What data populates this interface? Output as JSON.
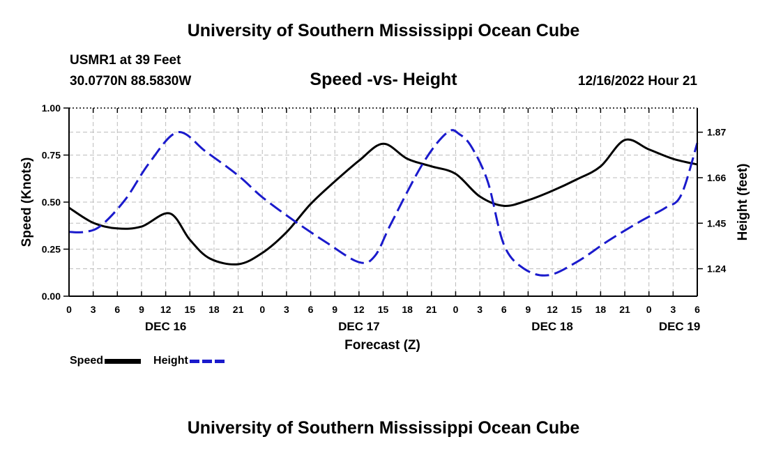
{
  "header": {
    "title": "University of Southern Mississippi Ocean Cube",
    "station": "USMR1 at 39 Feet",
    "coords": "30.0770N  88.5830W",
    "subtitle": "Speed -vs- Height",
    "datetime": "12/16/2022 Hour 21"
  },
  "footer": {
    "title": "University of Southern Mississippi Ocean Cube"
  },
  "legend": {
    "speed": "Speed",
    "height": "Height"
  },
  "colors": {
    "speed": "#000000",
    "height": "#1a1acc",
    "grid": "#bbbbbb"
  },
  "chart_data": {
    "type": "line",
    "xlabel": "Forecast (Z)",
    "ylabel": "Speed (Knots)",
    "y2label": "Height (feet)",
    "x_range_hours": [
      0,
      78
    ],
    "ylim": [
      0,
      1.0
    ],
    "y2lim": [
      1.1132,
      1.9815
    ],
    "y_ticks": [
      0.0,
      0.25,
      0.5,
      0.75,
      1.0
    ],
    "y_tick_labels": [
      "0.00",
      "0.25",
      "0.50",
      "0.75",
      "1.00"
    ],
    "y2_ticks": [
      1.24,
      1.45,
      1.66,
      1.87
    ],
    "y2_tick_labels": [
      "1.24",
      "1.45",
      "1.66",
      "1.87"
    ],
    "x_ticks": [
      0,
      3,
      6,
      9,
      12,
      15,
      18,
      21,
      24,
      27,
      30,
      33,
      36,
      39,
      42,
      45,
      48,
      51,
      54,
      57,
      60,
      63,
      66,
      69,
      72,
      75,
      78
    ],
    "x_tick_labels": [
      "0",
      "3",
      "6",
      "9",
      "12",
      "15",
      "18",
      "21",
      "0",
      "3",
      "6",
      "9",
      "12",
      "15",
      "18",
      "21",
      "0",
      "3",
      "6",
      "9",
      "12",
      "15",
      "18",
      "21",
      "0",
      "3",
      "6"
    ],
    "day_labels": [
      {
        "label": "DEC 16",
        "hour": 12
      },
      {
        "label": "DEC 17",
        "hour": 36
      },
      {
        "label": "DEC 18",
        "hour": 60
      },
      {
        "label": "DEC 19",
        "hour": 75.8
      }
    ],
    "grid": true,
    "series": [
      {
        "name": "Speed",
        "axis": "left",
        "style": "solid",
        "x": [
          0,
          3,
          6,
          9,
          12.5,
          15,
          17.5,
          21,
          24,
          27,
          30,
          33,
          36,
          39,
          42,
          45,
          48,
          51,
          54,
          57,
          60,
          63,
          66,
          69,
          72,
          75,
          78
        ],
        "values": [
          0.47,
          0.39,
          0.36,
          0.37,
          0.44,
          0.3,
          0.2,
          0.17,
          0.23,
          0.34,
          0.49,
          0.61,
          0.72,
          0.81,
          0.73,
          0.69,
          0.65,
          0.53,
          0.48,
          0.51,
          0.56,
          0.62,
          0.69,
          0.83,
          0.78,
          0.73,
          0.7
        ]
      },
      {
        "name": "Height",
        "axis": "right",
        "style": "dashed",
        "x": [
          0,
          2,
          4,
          7,
          10,
          13.5,
          17,
          21,
          24,
          28,
          32,
          36,
          38,
          40,
          44,
          47,
          48.5,
          50,
          52,
          54,
          56.5,
          59.5,
          63,
          67,
          71,
          74,
          76,
          78
        ],
        "values": [
          1.41,
          1.41,
          1.44,
          1.56,
          1.73,
          1.87,
          1.78,
          1.67,
          1.57,
          1.46,
          1.36,
          1.27,
          1.3,
          1.45,
          1.73,
          1.87,
          1.86,
          1.8,
          1.64,
          1.35,
          1.24,
          1.21,
          1.27,
          1.37,
          1.46,
          1.52,
          1.58,
          1.82
        ]
      }
    ]
  }
}
